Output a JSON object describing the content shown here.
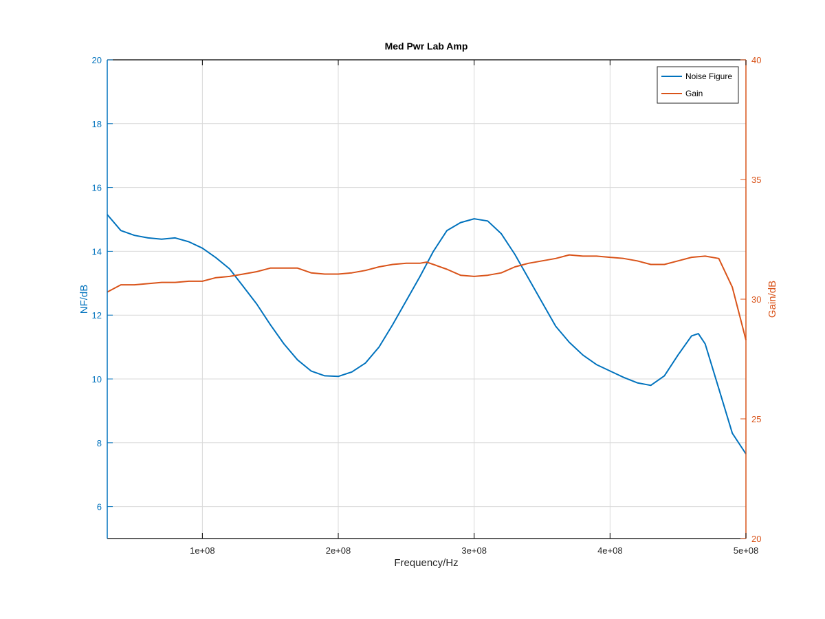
{
  "chart_data": {
    "type": "line",
    "title": "Med Pwr Lab Amp",
    "xlabel": "Frequency/Hz",
    "ylabel_left": "NF/dB",
    "ylabel_right": "Gain/dB",
    "xlim": [
      30000000,
      500000000
    ],
    "ylim_left": [
      5,
      20
    ],
    "ylim_right": [
      20,
      40
    ],
    "x_ticks": [
      100000000,
      200000000,
      300000000,
      400000000,
      500000000
    ],
    "x_tick_labels": [
      "1e+08",
      "2e+08",
      "3e+08",
      "4e+08",
      "5e+08"
    ],
    "y_left_ticks": [
      6,
      8,
      10,
      12,
      14,
      16,
      18,
      20
    ],
    "y_left_tick_labels": [
      "6",
      "8",
      "10",
      "12",
      "14",
      "16",
      "18",
      "20"
    ],
    "y_right_ticks": [
      20,
      25,
      30,
      35,
      40
    ],
    "y_right_tick_labels": [
      "20",
      "25",
      "30",
      "35",
      "40"
    ],
    "grid": true,
    "legend_position": "top-right",
    "colors": {
      "noise_figure": "#0072BD",
      "gain": "#D95319",
      "grid": "#d9d9d9",
      "axis": "#000000"
    },
    "series": [
      {
        "name": "Noise Figure",
        "axis": "left",
        "x": [
          30000000,
          40000000,
          50000000,
          60000000,
          70000000,
          80000000,
          90000000,
          100000000,
          110000000,
          120000000,
          130000000,
          140000000,
          150000000,
          160000000,
          170000000,
          180000000,
          190000000,
          200000000,
          210000000,
          220000000,
          230000000,
          240000000,
          250000000,
          260000000,
          270000000,
          280000000,
          290000000,
          300000000,
          310000000,
          320000000,
          330000000,
          340000000,
          350000000,
          360000000,
          370000000,
          380000000,
          390000000,
          400000000,
          410000000,
          420000000,
          430000000,
          440000000,
          450000000,
          460000000,
          465000000,
          470000000,
          480000000,
          490000000,
          500000000
        ],
        "values": [
          15.15,
          14.65,
          14.5,
          14.42,
          14.38,
          14.42,
          14.3,
          14.1,
          13.8,
          13.45,
          12.9,
          12.35,
          11.7,
          11.1,
          10.6,
          10.25,
          10.1,
          10.08,
          10.22,
          10.5,
          11.0,
          11.7,
          12.45,
          13.2,
          14.0,
          14.65,
          14.9,
          15.02,
          14.95,
          14.55,
          13.9,
          13.15,
          12.4,
          11.65,
          11.15,
          10.75,
          10.45,
          10.25,
          10.05,
          9.88,
          9.8,
          10.1,
          10.75,
          11.35,
          11.42,
          11.1,
          9.7,
          8.3,
          7.65
        ]
      },
      {
        "name": "Gain",
        "axis": "right",
        "x": [
          30000000,
          40000000,
          50000000,
          60000000,
          70000000,
          80000000,
          90000000,
          100000000,
          110000000,
          120000000,
          130000000,
          140000000,
          150000000,
          160000000,
          170000000,
          180000000,
          190000000,
          200000000,
          210000000,
          220000000,
          230000000,
          240000000,
          250000000,
          260000000,
          265000000,
          270000000,
          280000000,
          290000000,
          300000000,
          310000000,
          320000000,
          330000000,
          340000000,
          350000000,
          360000000,
          370000000,
          380000000,
          390000000,
          400000000,
          410000000,
          420000000,
          430000000,
          440000000,
          450000000,
          460000000,
          470000000,
          480000000,
          490000000,
          500000000
        ],
        "values": [
          30.3,
          30.6,
          30.6,
          30.65,
          30.7,
          30.7,
          30.75,
          30.75,
          30.9,
          30.95,
          31.05,
          31.15,
          31.3,
          31.3,
          31.3,
          31.1,
          31.05,
          31.05,
          31.1,
          31.2,
          31.35,
          31.45,
          31.5,
          31.5,
          31.55,
          31.45,
          31.25,
          31.0,
          30.95,
          31.0,
          31.1,
          31.35,
          31.5,
          31.6,
          31.7,
          31.85,
          31.8,
          31.8,
          31.75,
          31.7,
          31.6,
          31.45,
          31.45,
          31.6,
          31.75,
          31.8,
          31.7,
          30.5,
          28.3
        ]
      }
    ]
  }
}
